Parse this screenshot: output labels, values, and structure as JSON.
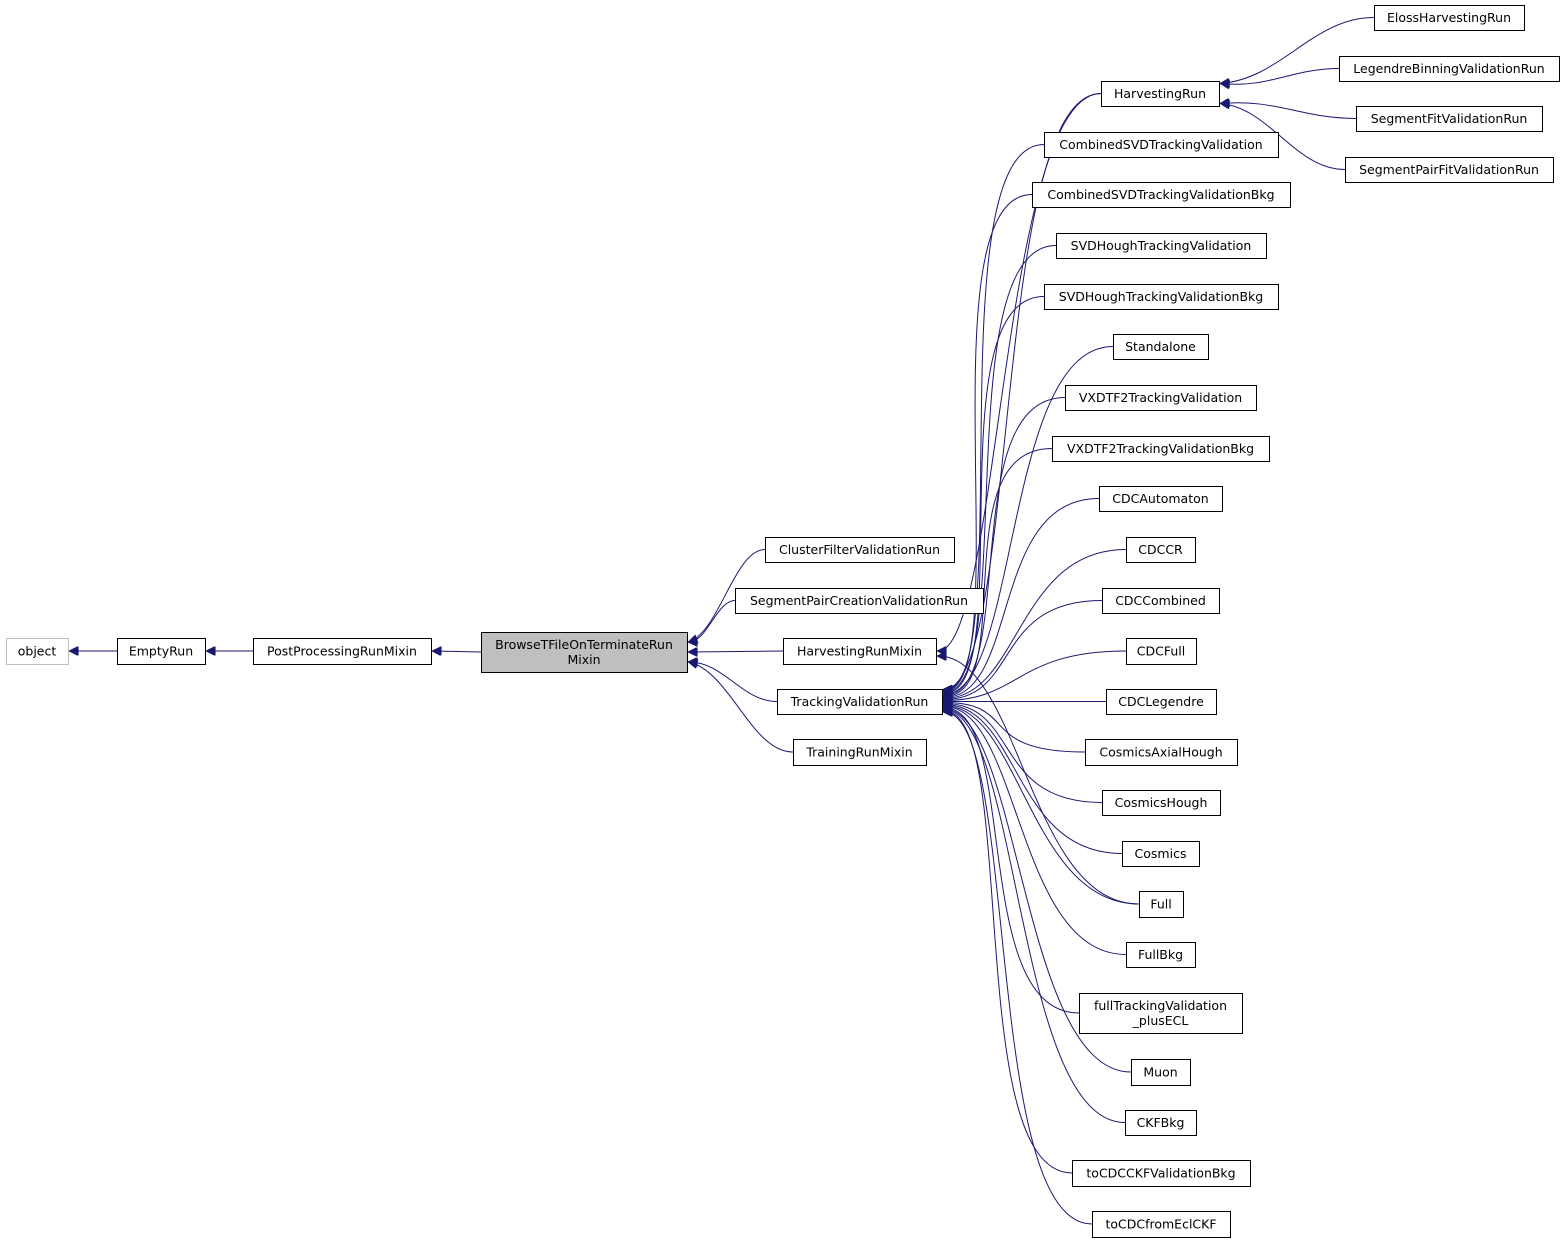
{
  "diagram": {
    "type": "inheritance-graph",
    "colors": {
      "edge": "#191970",
      "current_fill": "#bfbfbf",
      "node_border": "#000000",
      "external_border": "#bfbfbf"
    },
    "nodes": [
      {
        "id": "object",
        "label": [
          "object"
        ],
        "style": "external"
      },
      {
        "id": "EmptyRun",
        "label": [
          "EmptyRun"
        ]
      },
      {
        "id": "PostProcessingRunMixin",
        "label": [
          "PostProcessingRunMixin"
        ]
      },
      {
        "id": "BrowseTFileOnTerminateRunMixin",
        "label": [
          "BrowseTFileOnTerminateRun",
          "Mixin"
        ],
        "style": "current"
      },
      {
        "id": "ClusterFilterValidationRun",
        "label": [
          "ClusterFilterValidationRun"
        ]
      },
      {
        "id": "SegmentPairCreationValidationRun",
        "label": [
          "SegmentPairCreationValidationRun"
        ]
      },
      {
        "id": "HarvestingRunMixin",
        "label": [
          "HarvestingRunMixin"
        ]
      },
      {
        "id": "TrackingValidationRun",
        "label": [
          "TrackingValidationRun"
        ]
      },
      {
        "id": "TrainingRunMixin",
        "label": [
          "TrainingRunMixin"
        ]
      },
      {
        "id": "HarvestingRun",
        "label": [
          "HarvestingRun"
        ]
      },
      {
        "id": "ElossHarvestingRun",
        "label": [
          "ElossHarvestingRun"
        ]
      },
      {
        "id": "LegendreBinningValidationRun",
        "label": [
          "LegendreBinningValidationRun"
        ]
      },
      {
        "id": "SegmentFitValidationRun",
        "label": [
          "SegmentFitValidationRun"
        ]
      },
      {
        "id": "SegmentPairFitValidationRun",
        "label": [
          "SegmentPairFitValidationRun"
        ]
      },
      {
        "id": "CombinedSVDTrackingValidation",
        "label": [
          "CombinedSVDTrackingValidation"
        ]
      },
      {
        "id": "CombinedSVDTrackingValidationBkg",
        "label": [
          "CombinedSVDTrackingValidationBkg"
        ]
      },
      {
        "id": "SVDHoughTrackingValidation",
        "label": [
          "SVDHoughTrackingValidation"
        ]
      },
      {
        "id": "SVDHoughTrackingValidationBkg",
        "label": [
          "SVDHoughTrackingValidationBkg"
        ]
      },
      {
        "id": "Standalone",
        "label": [
          "Standalone"
        ]
      },
      {
        "id": "VXDTF2TrackingValidation",
        "label": [
          "VXDTF2TrackingValidation"
        ]
      },
      {
        "id": "VXDTF2TrackingValidationBkg",
        "label": [
          "VXDTF2TrackingValidationBkg"
        ]
      },
      {
        "id": "CDCAutomaton",
        "label": [
          "CDCAutomaton"
        ]
      },
      {
        "id": "CDCCR",
        "label": [
          "CDCCR"
        ]
      },
      {
        "id": "CDCCombined",
        "label": [
          "CDCCombined"
        ]
      },
      {
        "id": "CDCFull",
        "label": [
          "CDCFull"
        ]
      },
      {
        "id": "CDCLegendre",
        "label": [
          "CDCLegendre"
        ]
      },
      {
        "id": "CosmicsAxialHough",
        "label": [
          "CosmicsAxialHough"
        ]
      },
      {
        "id": "CosmicsHough",
        "label": [
          "CosmicsHough"
        ]
      },
      {
        "id": "Cosmics",
        "label": [
          "Cosmics"
        ]
      },
      {
        "id": "Full",
        "label": [
          "Full"
        ]
      },
      {
        "id": "FullBkg",
        "label": [
          "FullBkg"
        ]
      },
      {
        "id": "fullTrackingValidation_plusECL",
        "label": [
          "fullTrackingValidation",
          "_plusECL"
        ]
      },
      {
        "id": "Muon",
        "label": [
          "Muon"
        ]
      },
      {
        "id": "CKFBkg",
        "label": [
          "CKFBkg"
        ]
      },
      {
        "id": "toCDCCKFValidationBkg",
        "label": [
          "toCDCCKFValidationBkg"
        ]
      },
      {
        "id": "toCDCfromEclCKF",
        "label": [
          "toCDCfromEclCKF"
        ]
      }
    ],
    "edges": [
      [
        "EmptyRun",
        "object"
      ],
      [
        "PostProcessingRunMixin",
        "EmptyRun"
      ],
      [
        "BrowseTFileOnTerminateRunMixin",
        "PostProcessingRunMixin"
      ],
      [
        "ClusterFilterValidationRun",
        "BrowseTFileOnTerminateRunMixin"
      ],
      [
        "SegmentPairCreationValidationRun",
        "BrowseTFileOnTerminateRunMixin"
      ],
      [
        "HarvestingRunMixin",
        "BrowseTFileOnTerminateRunMixin"
      ],
      [
        "TrackingValidationRun",
        "BrowseTFileOnTerminateRunMixin"
      ],
      [
        "TrainingRunMixin",
        "BrowseTFileOnTerminateRunMixin"
      ],
      [
        "HarvestingRun",
        "HarvestingRunMixin"
      ],
      [
        "ElossHarvestingRun",
        "HarvestingRun"
      ],
      [
        "LegendreBinningValidationRun",
        "HarvestingRun"
      ],
      [
        "SegmentFitValidationRun",
        "HarvestingRun"
      ],
      [
        "SegmentPairFitValidationRun",
        "HarvestingRun"
      ],
      [
        "CombinedSVDTrackingValidation",
        "TrackingValidationRun"
      ],
      [
        "CombinedSVDTrackingValidationBkg",
        "TrackingValidationRun"
      ],
      [
        "SVDHoughTrackingValidation",
        "TrackingValidationRun"
      ],
      [
        "SVDHoughTrackingValidationBkg",
        "TrackingValidationRun"
      ],
      [
        "Standalone",
        "TrackingValidationRun"
      ],
      [
        "VXDTF2TrackingValidation",
        "TrackingValidationRun"
      ],
      [
        "VXDTF2TrackingValidationBkg",
        "TrackingValidationRun"
      ],
      [
        "CDCAutomaton",
        "TrackingValidationRun"
      ],
      [
        "CDCCR",
        "TrackingValidationRun"
      ],
      [
        "CDCCombined",
        "TrackingValidationRun"
      ],
      [
        "CDCFull",
        "TrackingValidationRun"
      ],
      [
        "CDCLegendre",
        "TrackingValidationRun"
      ],
      [
        "CosmicsAxialHough",
        "TrackingValidationRun"
      ],
      [
        "CosmicsHough",
        "TrackingValidationRun"
      ],
      [
        "Cosmics",
        "TrackingValidationRun"
      ],
      [
        "Full",
        "TrackingValidationRun"
      ],
      [
        "FullBkg",
        "TrackingValidationRun"
      ],
      [
        "fullTrackingValidation_plusECL",
        "TrackingValidationRun"
      ],
      [
        "Muon",
        "TrackingValidationRun"
      ],
      [
        "CKFBkg",
        "TrackingValidationRun"
      ],
      [
        "toCDCCKFValidationBkg",
        "TrackingValidationRun"
      ],
      [
        "toCDCfromEclCKF",
        "TrackingValidationRun"
      ],
      [
        "HarvestingRun",
        "TrackingValidationRun"
      ],
      [
        "Full",
        "HarvestingRunMixin"
      ]
    ]
  }
}
